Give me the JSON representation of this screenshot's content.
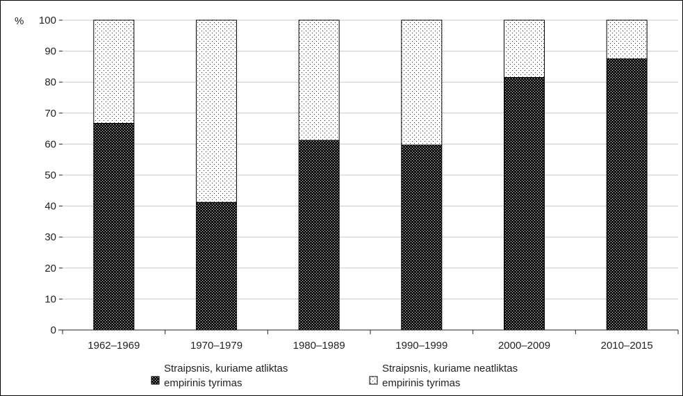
{
  "chart_data": {
    "type": "bar",
    "stacked": true,
    "ylabel": "%",
    "ylim": [
      0,
      100
    ],
    "yticks": [
      0,
      10,
      20,
      30,
      40,
      50,
      60,
      70,
      80,
      90,
      100
    ],
    "grid": true,
    "legend_position": "bottom",
    "categories": [
      "1962–1969",
      "1970–1979",
      "1980–1989",
      "1990–1999",
      "2000–2009",
      "2010–2015"
    ],
    "series": [
      {
        "name": "Straipsnis, kuriame atliktas empirinis tyrimas",
        "legend_lines": [
          "Straipsnis, kuriame atliktas",
          "empirinis tyrimas"
        ],
        "pattern": "dense-dots",
        "values": [
          66.7,
          41.2,
          61.2,
          59.7,
          81.5,
          87.5
        ]
      },
      {
        "name": "Straipsnis, kuriame neatliktas empirinis tyrimas",
        "legend_lines": [
          "Straipsnis, kuriame neatliktas",
          "empirinis tyrimas"
        ],
        "pattern": "sparse-dots",
        "values": [
          33.3,
          58.8,
          38.8,
          40.3,
          18.5,
          12.5
        ]
      }
    ]
  },
  "colors": {
    "axis": "#222222",
    "grid": "#c8c8c8",
    "bar_outline": "#000000"
  }
}
